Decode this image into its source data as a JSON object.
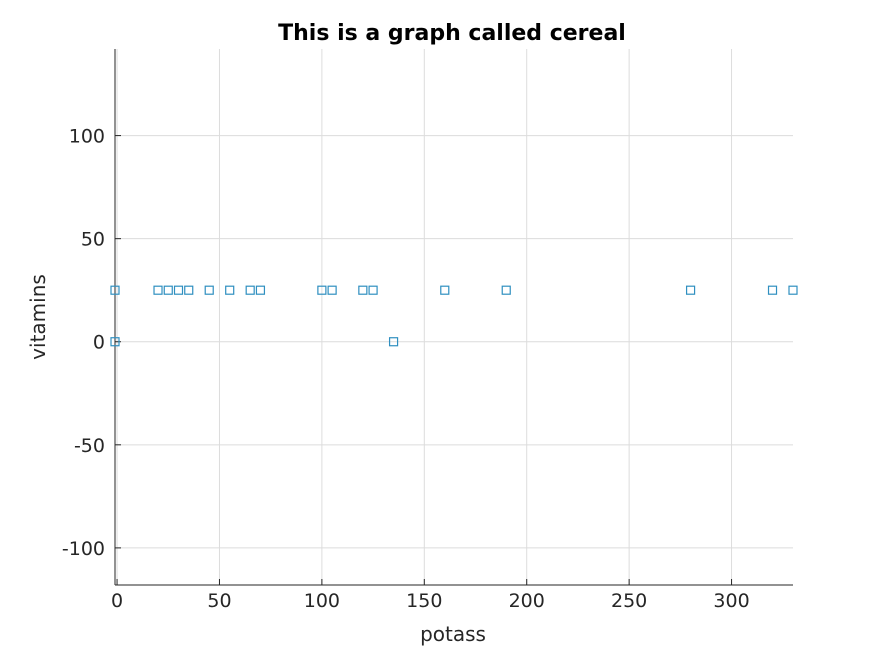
{
  "chart_data": {
    "type": "scatter",
    "title": "This is a graph called cereal",
    "xlabel": "potass",
    "ylabel": "vitamins",
    "xlim": [
      -1,
      330
    ],
    "ylim": [
      -118,
      142
    ],
    "xticks": [
      0,
      50,
      100,
      150,
      200,
      250,
      300
    ],
    "yticks": [
      -100,
      -50,
      0,
      50,
      100
    ],
    "xtick_labels": [
      "0",
      "50",
      "100",
      "150",
      "200",
      "250",
      "300"
    ],
    "ytick_labels": [
      "-100",
      "-50",
      "0",
      "50",
      "100"
    ],
    "grid": true,
    "marker": "square",
    "marker_color": "#2f8fc0",
    "points": [
      {
        "x": -1,
        "y": 25
      },
      {
        "x": -1,
        "y": 0
      },
      {
        "x": 20,
        "y": 25
      },
      {
        "x": 25,
        "y": 25
      },
      {
        "x": 30,
        "y": 25
      },
      {
        "x": 35,
        "y": 25
      },
      {
        "x": 45,
        "y": 25
      },
      {
        "x": 55,
        "y": 25
      },
      {
        "x": 65,
        "y": 25
      },
      {
        "x": 70,
        "y": 25
      },
      {
        "x": 100,
        "y": 25
      },
      {
        "x": 105,
        "y": 25
      },
      {
        "x": 120,
        "y": 25
      },
      {
        "x": 125,
        "y": 25
      },
      {
        "x": 135,
        "y": 0
      },
      {
        "x": 160,
        "y": 25
      },
      {
        "x": 190,
        "y": 25
      },
      {
        "x": 280,
        "y": 25
      },
      {
        "x": 320,
        "y": 25
      },
      {
        "x": 330,
        "y": 25
      }
    ]
  }
}
